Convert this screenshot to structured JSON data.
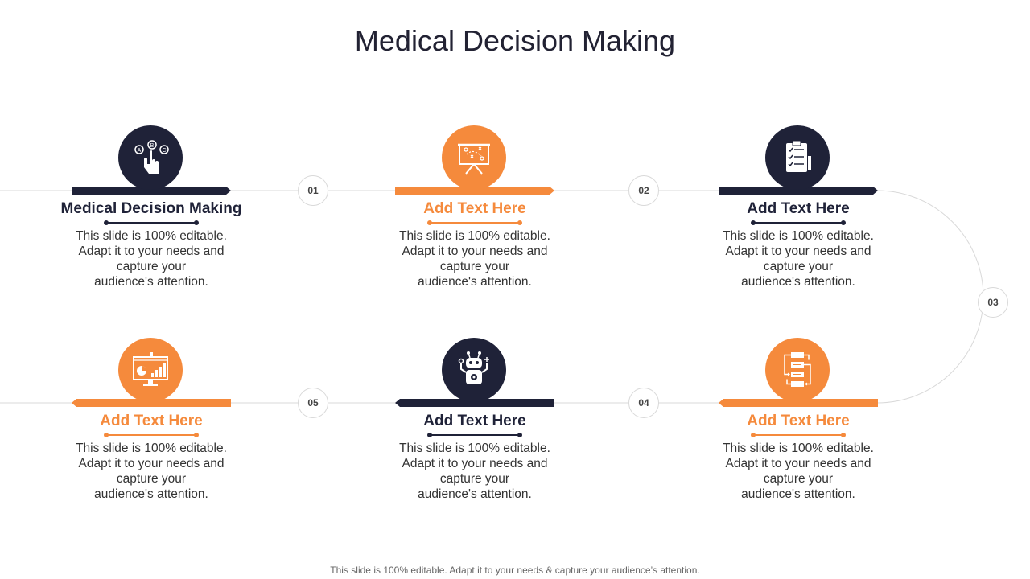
{
  "slide": {
    "title": "Medical Decision Making",
    "footer": "This slide is 100% editable. Adapt it to your needs & capture your audience’s attention."
  },
  "steps": [
    {
      "number": "01"
    },
    {
      "number": "02"
    },
    {
      "number": "03"
    },
    {
      "number": "04"
    },
    {
      "number": "05"
    }
  ],
  "cards": [
    {
      "heading": "Medical Decision Making",
      "body_lines": [
        "This slide is 100% editable.",
        "Adapt it to your needs and",
        "capture your",
        "audience's attention."
      ],
      "icon": "choice-hand-icon",
      "accent": "#1f2238"
    },
    {
      "heading": "Add Text Here",
      "body_lines": [
        "This slide is 100% editable.",
        "Adapt it to your needs and",
        "capture your",
        "audience's attention."
      ],
      "icon": "strategy-board-icon",
      "accent": "#f58a3c"
    },
    {
      "heading": "Add Text Here",
      "body_lines": [
        "This slide is 100% editable.",
        "Adapt it to your needs and",
        "capture your",
        "audience's attention."
      ],
      "icon": "checklist-icon",
      "accent": "#1f2238"
    },
    {
      "heading": "Add Text Here",
      "body_lines": [
        "This slide is 100% editable.",
        "Adapt it to your needs and",
        "capture your",
        "audience's attention."
      ],
      "icon": "analytics-monitor-icon",
      "accent": "#f58a3c"
    },
    {
      "heading": "Add Text Here",
      "body_lines": [
        "This slide is 100% editable.",
        "Adapt it to your needs and",
        "capture your",
        "audience's attention."
      ],
      "icon": "robot-icon",
      "accent": "#1f2238"
    },
    {
      "heading": "Add Text Here",
      "body_lines": [
        "This slide is 100% editable.",
        "Adapt it to your needs and",
        "capture your",
        "audience's attention."
      ],
      "icon": "flowchart-icon",
      "accent": "#f58a3c"
    }
  ],
  "colors": {
    "navy": "#1f2238",
    "orange": "#f58a3c",
    "line": "#d9d9d9"
  }
}
